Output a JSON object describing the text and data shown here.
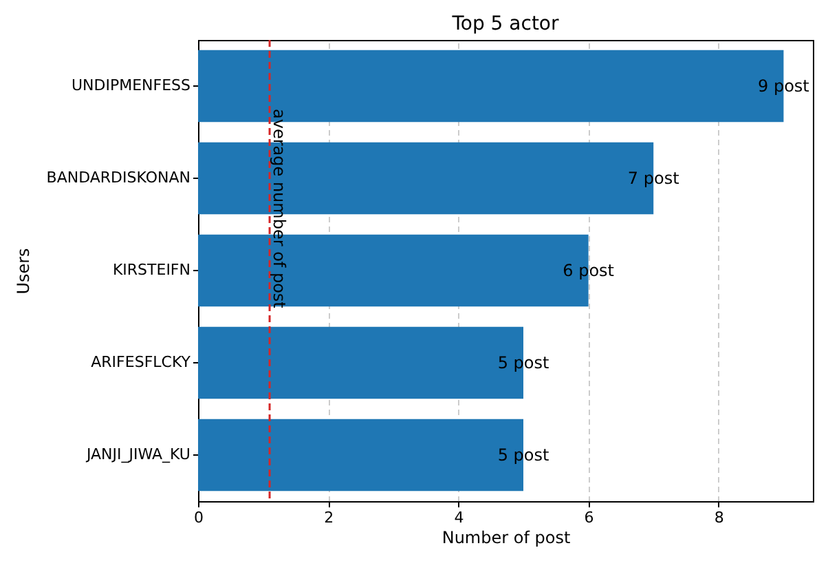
{
  "chart_data": {
    "type": "bar",
    "orientation": "horizontal",
    "title": "Top 5 actor",
    "xlabel": "Number of post",
    "ylabel": "Users",
    "categories": [
      "UNDIPMENFESS",
      "BANDARDISKONAN",
      "KIRSTEIFN",
      "ARIFESFLCKY",
      "JANJI_JIWA_KU"
    ],
    "series": [
      {
        "color": "#1f77b4",
        "values": [
          9,
          7,
          6,
          5,
          5
        ],
        "value_labels": [
          "9 post",
          "7 post",
          "6 post",
          "5 post",
          "5 post"
        ]
      }
    ],
    "xlim": [
      0,
      9.45
    ],
    "xticks": [
      0,
      2,
      4,
      6,
      8
    ],
    "grid": "x",
    "ref_lines": [
      {
        "axis": "x",
        "value": 1.1,
        "label": "average number of post",
        "color": "#d62728",
        "line_style": "dashed"
      }
    ]
  }
}
